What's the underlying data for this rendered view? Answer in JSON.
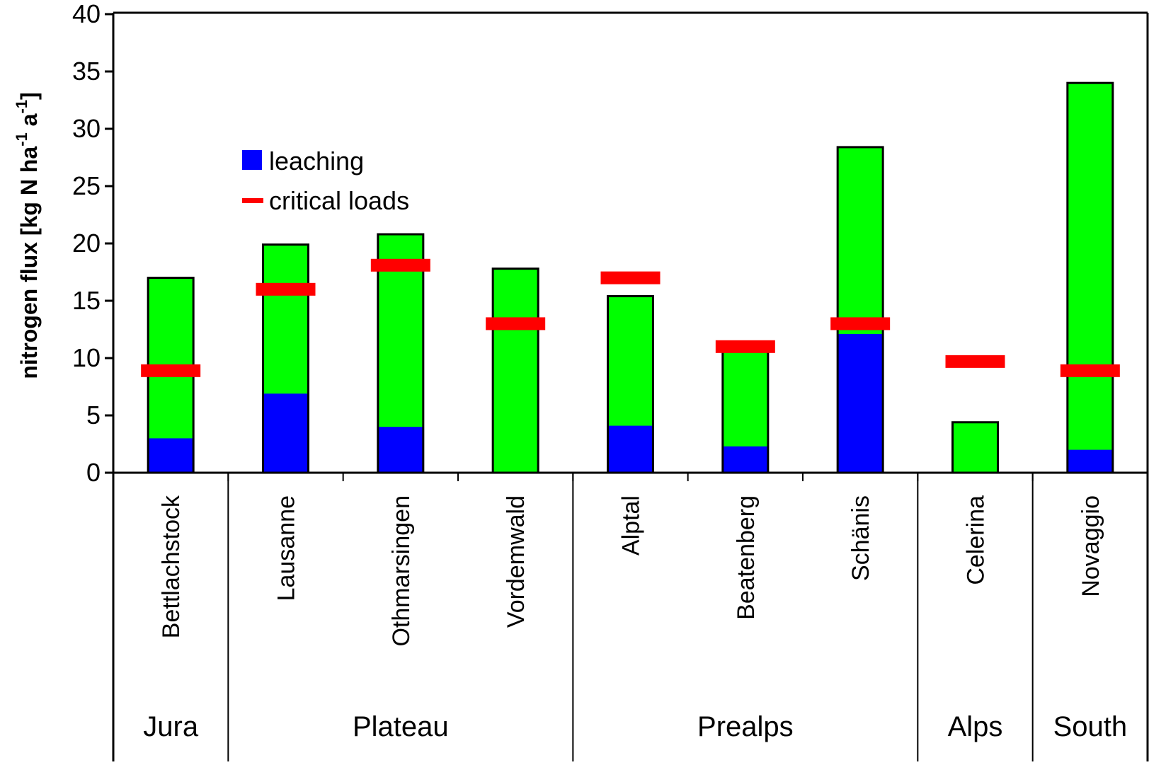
{
  "chart_data": {
    "type": "bar",
    "ylabel_main": "nitrogen flux [kg N ha",
    "ylabel_sup1": "-1",
    "ylabel_mid": " a",
    "ylabel_sup2": "-1",
    "ylabel_end": "]",
    "ylim": [
      0,
      40
    ],
    "yticks": [
      "0",
      "5",
      "10",
      "15",
      "20",
      "25",
      "30",
      "35",
      "40"
    ],
    "categories": [
      "Bettlachstock",
      "Lausanne",
      "Othmarsingen",
      "Vordemwald",
      "Alptal",
      "Beatenberg",
      "Schänis",
      "Celerina",
      "Novaggio"
    ],
    "regions": [
      {
        "name": "Jura",
        "count": 1
      },
      {
        "name": "Plateau",
        "count": 3
      },
      {
        "name": "Prealps",
        "count": 3
      },
      {
        "name": "Alps",
        "count": 1
      },
      {
        "name": "South",
        "count": 1
      }
    ],
    "series": [
      {
        "name": "leaching",
        "color": "#0000ff",
        "values": [
          3.0,
          6.9,
          4.0,
          0,
          4.1,
          2.3,
          12.1,
          0,
          2.0
        ]
      },
      {
        "name": "",
        "color": "#00ff00",
        "values": [
          17.0,
          19.9,
          20.8,
          17.8,
          15.4,
          10.8,
          28.4,
          4.4,
          34.0
        ]
      },
      {
        "name": "critical loads",
        "color": "#ff0000",
        "values": [
          8.9,
          16.0,
          18.1,
          13.0,
          17.0,
          11.0,
          13.0,
          9.7,
          8.9
        ]
      }
    ],
    "legend": {
      "position": "upper-left",
      "items": [
        "leaching",
        "critical loads"
      ]
    },
    "grid": false
  }
}
